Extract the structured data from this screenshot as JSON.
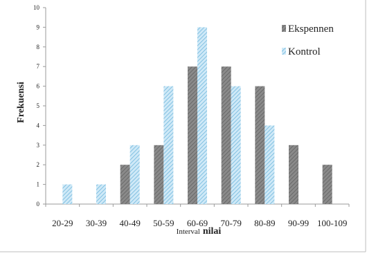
{
  "chart_data": {
    "type": "bar",
    "title": "",
    "xlabel_light": "Interval",
    "xlabel_bold": "nilai",
    "ylabel": "Frekuensi",
    "categories": [
      "20-29",
      "30-39",
      "40-49",
      "50-59",
      "60-69",
      "70-79",
      "80-89",
      "90-99",
      "100-109"
    ],
    "series": [
      {
        "name": "Ekspennen",
        "values": [
          0,
          0,
          2,
          3,
          7,
          7,
          6,
          3,
          2
        ],
        "color": "#7f7f7f"
      },
      {
        "name": "Kontrol",
        "values": [
          1,
          1,
          3,
          6,
          9,
          6,
          4,
          0,
          0
        ],
        "color": "#8ecae6"
      }
    ],
    "ylim": [
      0,
      10
    ],
    "yticks": [
      0,
      1,
      2,
      3,
      4,
      5,
      6,
      7,
      8,
      9,
      10
    ],
    "grid": false,
    "legend_position": "top-right"
  }
}
